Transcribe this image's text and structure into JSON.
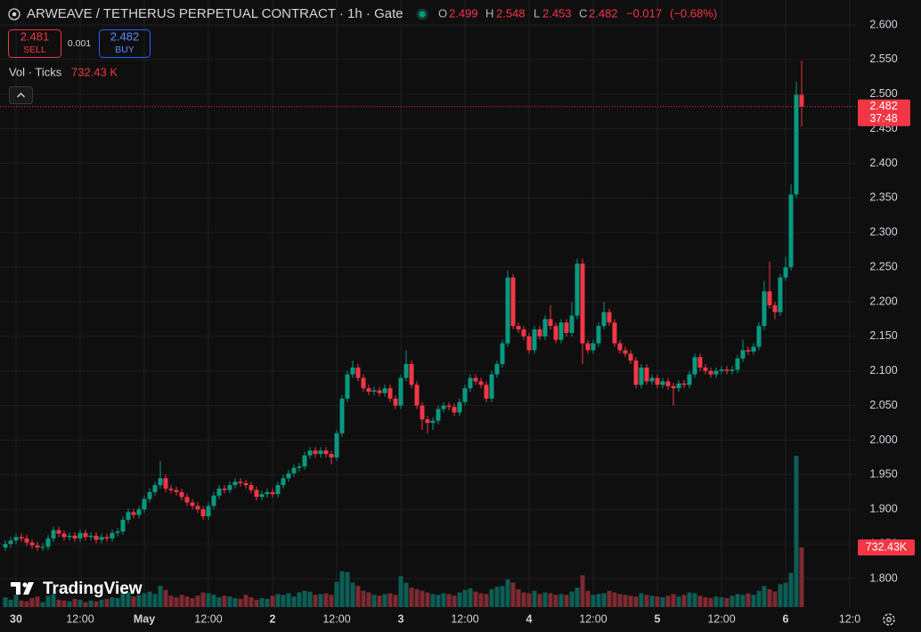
{
  "chart_data": {
    "type": "candlestick",
    "title": "ARWEAVE / TETHERUS PERPETUAL CONTRACT · 1h · Gate",
    "ohlc_legend_labels": [
      "O",
      "H",
      "L",
      "C"
    ],
    "change": {
      "value": -0.017,
      "label": "−0.017"
    },
    "change_pct": {
      "value": -0.68,
      "label": "(−0.68%)"
    },
    "sell_price": 2.481,
    "sell_label": "SELL",
    "spread": 0.001,
    "buy_price": 2.482,
    "buy_label": "BUY",
    "volume_title": "Vol · Ticks",
    "volume_last_label": "732.43 K",
    "volume_tag_label": "732.43K",
    "countdown": "37:48",
    "brand": "TradingView",
    "up_color": "#089981",
    "down_color": "#f23645",
    "up_volume_color": "#0b5e56",
    "down_volume_color": "#7d2a30",
    "grid": true,
    "ylim": [
      1.77,
      2.6
    ],
    "yticks": [
      {
        "value": 1.8,
        "label": "1.800"
      },
      {
        "value": 1.85,
        "label": "1.850"
      },
      {
        "value": 1.9,
        "label": "1.900"
      },
      {
        "value": 1.95,
        "label": "1.950"
      },
      {
        "value": 2.0,
        "label": "2.000"
      },
      {
        "value": 2.05,
        "label": "2.050"
      },
      {
        "value": 2.1,
        "label": "2.100"
      },
      {
        "value": 2.15,
        "label": "2.150"
      },
      {
        "value": 2.2,
        "label": "2.200"
      },
      {
        "value": 2.25,
        "label": "2.250"
      },
      {
        "value": 2.3,
        "label": "2.300"
      },
      {
        "value": 2.35,
        "label": "2.350"
      },
      {
        "value": 2.4,
        "label": "2.400"
      },
      {
        "value": 2.45,
        "label": "2.450"
      },
      {
        "value": 2.5,
        "label": "2.500"
      },
      {
        "value": 2.55,
        "label": "2.550"
      },
      {
        "value": 2.6,
        "label": "2.600"
      }
    ],
    "categories": [
      null,
      null,
      "30",
      null,
      null,
      null,
      null,
      null,
      null,
      null,
      null,
      null,
      null,
      null,
      "12:00",
      null,
      null,
      null,
      null,
      null,
      null,
      null,
      null,
      null,
      null,
      null,
      "May",
      null,
      null,
      null,
      null,
      null,
      null,
      null,
      null,
      null,
      null,
      null,
      "12:00",
      null,
      null,
      null,
      null,
      null,
      null,
      null,
      null,
      null,
      null,
      null,
      "2",
      null,
      null,
      null,
      null,
      null,
      null,
      null,
      null,
      null,
      null,
      null,
      "12:00",
      null,
      null,
      null,
      null,
      null,
      null,
      null,
      null,
      null,
      null,
      null,
      "3",
      null,
      null,
      null,
      null,
      null,
      null,
      null,
      null,
      null,
      null,
      null,
      "12:00",
      null,
      null,
      null,
      null,
      null,
      null,
      null,
      null,
      null,
      null,
      null,
      "4",
      null,
      null,
      null,
      null,
      null,
      null,
      null,
      null,
      null,
      null,
      null,
      "12:00",
      null,
      null,
      null,
      null,
      null,
      null,
      null,
      null,
      null,
      null,
      null,
      "5",
      null,
      null,
      null,
      null,
      null,
      null,
      null,
      null,
      null,
      null,
      null,
      "12:00",
      null,
      null,
      null,
      null,
      null,
      null,
      null,
      null,
      null,
      null,
      null,
      "6",
      null,
      null,
      null,
      null,
      null,
      null,
      null,
      null,
      null,
      null,
      null,
      "12:0",
      null
    ],
    "ohlc": [
      [
        1.845,
        1.855,
        1.84,
        1.85
      ],
      [
        1.85,
        1.86,
        1.845,
        1.855
      ],
      [
        1.855,
        1.865,
        1.85,
        1.86
      ],
      [
        1.86,
        1.865,
        1.853,
        1.858
      ],
      [
        1.858,
        1.863,
        1.847,
        1.852
      ],
      [
        1.852,
        1.857,
        1.843,
        1.848
      ],
      [
        1.848,
        1.853,
        1.84,
        1.845
      ],
      [
        1.845,
        1.851,
        1.84,
        1.846
      ],
      [
        1.846,
        1.863,
        1.841,
        1.858
      ],
      [
        1.858,
        1.875,
        1.853,
        1.87
      ],
      [
        1.87,
        1.875,
        1.86,
        1.865
      ],
      [
        1.865,
        1.87,
        1.855,
        1.86
      ],
      [
        1.86,
        1.867,
        1.855,
        1.862
      ],
      [
        1.862,
        1.867,
        1.853,
        1.858
      ],
      [
        1.858,
        1.871,
        1.853,
        1.866
      ],
      [
        1.866,
        1.871,
        1.855,
        1.86
      ],
      [
        1.86,
        1.867,
        1.855,
        1.862
      ],
      [
        1.862,
        1.867,
        1.851,
        1.856
      ],
      [
        1.856,
        1.865,
        1.851,
        1.86
      ],
      [
        1.86,
        1.865,
        1.853,
        1.858
      ],
      [
        1.858,
        1.871,
        1.853,
        1.866
      ],
      [
        1.866,
        1.873,
        1.861,
        1.868
      ],
      [
        1.868,
        1.89,
        1.863,
        1.885
      ],
      [
        1.885,
        1.901,
        1.88,
        1.896
      ],
      [
        1.896,
        1.901,
        1.887,
        1.892
      ],
      [
        1.892,
        1.905,
        1.887,
        1.9
      ],
      [
        1.9,
        1.92,
        1.895,
        1.915
      ],
      [
        1.915,
        1.93,
        1.91,
        1.925
      ],
      [
        1.925,
        1.94,
        1.92,
        1.935
      ],
      [
        1.935,
        1.97,
        1.93,
        1.945
      ],
      [
        1.945,
        1.95,
        1.925,
        1.93
      ],
      [
        1.93,
        1.935,
        1.923,
        1.928
      ],
      [
        1.928,
        1.933,
        1.92,
        1.925
      ],
      [
        1.925,
        1.93,
        1.913,
        1.918
      ],
      [
        1.918,
        1.923,
        1.905,
        1.91
      ],
      [
        1.91,
        1.915,
        1.9,
        1.905
      ],
      [
        1.905,
        1.91,
        1.895,
        1.9
      ],
      [
        1.9,
        1.905,
        1.885,
        1.89
      ],
      [
        1.89,
        1.91,
        1.885,
        1.905
      ],
      [
        1.905,
        1.925,
        1.9,
        1.92
      ],
      [
        1.92,
        1.935,
        1.915,
        1.93
      ],
      [
        1.93,
        1.935,
        1.923,
        1.928
      ],
      [
        1.928,
        1.94,
        1.923,
        1.935
      ],
      [
        1.935,
        1.945,
        1.93,
        1.94
      ],
      [
        1.94,
        1.945,
        1.933,
        1.938
      ],
      [
        1.938,
        1.943,
        1.93,
        1.935
      ],
      [
        1.935,
        1.94,
        1.923,
        1.928
      ],
      [
        1.928,
        1.933,
        1.913,
        1.918
      ],
      [
        1.918,
        1.927,
        1.913,
        1.922
      ],
      [
        1.922,
        1.93,
        1.917,
        1.925
      ],
      [
        1.925,
        1.93,
        1.917,
        1.922
      ],
      [
        1.922,
        1.94,
        1.917,
        1.935
      ],
      [
        1.935,
        1.95,
        1.93,
        1.945
      ],
      [
        1.945,
        1.957,
        1.94,
        1.952
      ],
      [
        1.952,
        1.965,
        1.947,
        1.96
      ],
      [
        1.96,
        1.967,
        1.955,
        1.962
      ],
      [
        1.962,
        1.983,
        1.957,
        1.978
      ],
      [
        1.978,
        1.99,
        1.973,
        1.985
      ],
      [
        1.985,
        1.99,
        1.975,
        1.98
      ],
      [
        1.98,
        1.99,
        1.975,
        1.985
      ],
      [
        1.985,
        1.99,
        1.975,
        1.98
      ],
      [
        1.98,
        1.985,
        1.965,
        1.975
      ],
      [
        1.975,
        2.015,
        1.97,
        2.01
      ],
      [
        2.01,
        2.065,
        2.005,
        2.06
      ],
      [
        2.06,
        2.1,
        2.055,
        2.095
      ],
      [
        2.095,
        2.115,
        2.09,
        2.105
      ],
      [
        2.105,
        2.11,
        2.085,
        2.09
      ],
      [
        2.09,
        2.095,
        2.07,
        2.075
      ],
      [
        2.075,
        2.08,
        2.065,
        2.07
      ],
      [
        2.07,
        2.077,
        2.065,
        2.072
      ],
      [
        2.072,
        2.077,
        2.063,
        2.068
      ],
      [
        2.068,
        2.08,
        2.063,
        2.075
      ],
      [
        2.075,
        2.08,
        2.055,
        2.06
      ],
      [
        2.06,
        2.065,
        2.045,
        2.05
      ],
      [
        2.05,
        2.095,
        2.045,
        2.09
      ],
      [
        2.09,
        2.13,
        2.085,
        2.11
      ],
      [
        2.11,
        2.115,
        2.075,
        2.08
      ],
      [
        2.08,
        2.085,
        2.045,
        2.05
      ],
      [
        2.05,
        2.055,
        2.015,
        2.03
      ],
      [
        2.03,
        2.035,
        2.01,
        2.025
      ],
      [
        2.025,
        2.033,
        2.015,
        2.028
      ],
      [
        2.028,
        2.05,
        2.023,
        2.045
      ],
      [
        2.045,
        2.055,
        2.04,
        2.05
      ],
      [
        2.05,
        2.055,
        2.043,
        2.048
      ],
      [
        2.048,
        2.053,
        2.035,
        2.04
      ],
      [
        2.04,
        2.06,
        2.035,
        2.055
      ],
      [
        2.055,
        2.08,
        2.05,
        2.075
      ],
      [
        2.075,
        2.095,
        2.07,
        2.09
      ],
      [
        2.09,
        2.095,
        2.08,
        2.085
      ],
      [
        2.085,
        2.09,
        2.075,
        2.08
      ],
      [
        2.08,
        2.085,
        2.055,
        2.06
      ],
      [
        2.06,
        2.1,
        2.055,
        2.095
      ],
      [
        2.095,
        2.115,
        2.09,
        2.11
      ],
      [
        2.11,
        2.145,
        2.105,
        2.14
      ],
      [
        2.14,
        2.245,
        2.135,
        2.235
      ],
      [
        2.235,
        2.24,
        2.16,
        2.165
      ],
      [
        2.165,
        2.17,
        2.155,
        2.16
      ],
      [
        2.16,
        2.165,
        2.145,
        2.15
      ],
      [
        2.15,
        2.155,
        2.125,
        2.13
      ],
      [
        2.13,
        2.165,
        2.125,
        2.16
      ],
      [
        2.16,
        2.165,
        2.145,
        2.15
      ],
      [
        2.15,
        2.18,
        2.145,
        2.175
      ],
      [
        2.175,
        2.195,
        2.16,
        2.165
      ],
      [
        2.165,
        2.17,
        2.14,
        2.145
      ],
      [
        2.145,
        2.175,
        2.14,
        2.17
      ],
      [
        2.17,
        2.175,
        2.15,
        2.155
      ],
      [
        2.155,
        2.2,
        2.15,
        2.18
      ],
      [
        2.18,
        2.262,
        2.175,
        2.255
      ],
      [
        2.255,
        2.262,
        2.11,
        2.14
      ],
      [
        2.14,
        2.145,
        2.125,
        2.13
      ],
      [
        2.13,
        2.145,
        2.125,
        2.14
      ],
      [
        2.14,
        2.17,
        2.135,
        2.165
      ],
      [
        2.165,
        2.2,
        2.16,
        2.185
      ],
      [
        2.185,
        2.19,
        2.165,
        2.17
      ],
      [
        2.17,
        2.175,
        2.135,
        2.14
      ],
      [
        2.14,
        2.145,
        2.125,
        2.13
      ],
      [
        2.13,
        2.135,
        2.12,
        2.125
      ],
      [
        2.125,
        2.13,
        2.11,
        2.115
      ],
      [
        2.115,
        2.12,
        2.075,
        2.08
      ],
      [
        2.08,
        2.11,
        2.075,
        2.105
      ],
      [
        2.105,
        2.11,
        2.08,
        2.085
      ],
      [
        2.085,
        2.095,
        2.08,
        2.09
      ],
      [
        2.09,
        2.095,
        2.075,
        2.08
      ],
      [
        2.08,
        2.09,
        2.075,
        2.085
      ],
      [
        2.085,
        2.09,
        2.073,
        2.078
      ],
      [
        2.078,
        2.083,
        2.05,
        2.075
      ],
      [
        2.075,
        2.087,
        2.07,
        2.082
      ],
      [
        2.082,
        2.087,
        2.075,
        2.08
      ],
      [
        2.08,
        2.1,
        2.075,
        2.095
      ],
      [
        2.095,
        2.125,
        2.09,
        2.12
      ],
      [
        2.12,
        2.125,
        2.1,
        2.105
      ],
      [
        2.105,
        2.11,
        2.095,
        2.1
      ],
      [
        2.1,
        2.105,
        2.09,
        2.095
      ],
      [
        2.095,
        2.105,
        2.09,
        2.1
      ],
      [
        2.1,
        2.107,
        2.095,
        2.102
      ],
      [
        2.102,
        2.107,
        2.095,
        2.1
      ],
      [
        2.1,
        2.107,
        2.095,
        2.102
      ],
      [
        2.102,
        2.123,
        2.097,
        2.118
      ],
      [
        2.118,
        2.145,
        2.113,
        2.13
      ],
      [
        2.13,
        2.135,
        2.123,
        2.128
      ],
      [
        2.128,
        2.14,
        2.123,
        2.135
      ],
      [
        2.135,
        2.17,
        2.13,
        2.165
      ],
      [
        2.165,
        2.23,
        2.16,
        2.215
      ],
      [
        2.215,
        2.258,
        2.19,
        2.195
      ],
      [
        2.195,
        2.2,
        2.175,
        2.185
      ],
      [
        2.185,
        2.24,
        2.18,
        2.235
      ],
      [
        2.235,
        2.265,
        2.23,
        2.25
      ],
      [
        2.25,
        2.37,
        2.245,
        2.355
      ],
      [
        2.355,
        2.518,
        2.35,
        2.499
      ],
      [
        2.499,
        2.548,
        2.453,
        2.482
      ],
      null,
      null,
      null,
      null,
      null,
      null,
      null,
      null,
      null,
      null
    ],
    "volume": [
      120,
      90,
      150,
      80,
      70,
      110,
      130,
      60,
      140,
      160,
      90,
      80,
      70,
      100,
      90,
      60,
      80,
      70,
      90,
      100,
      120,
      110,
      200,
      180,
      130,
      150,
      170,
      190,
      160,
      260,
      210,
      140,
      120,
      150,
      130,
      110,
      140,
      180,
      170,
      150,
      120,
      140,
      130,
      110,
      100,
      150,
      120,
      90,
      110,
      100,
      140,
      160,
      150,
      170,
      130,
      180,
      200,
      190,
      150,
      160,
      170,
      150,
      310,
      440,
      430,
      300,
      260,
      200,
      180,
      150,
      140,
      160,
      170,
      150,
      380,
      300,
      240,
      220,
      200,
      180,
      160,
      150,
      170,
      160,
      140,
      180,
      210,
      230,
      190,
      170,
      160,
      220,
      250,
      260,
      340,
      300,
      220,
      180,
      170,
      200,
      160,
      180,
      170,
      150,
      160,
      150,
      190,
      240,
      390,
      200,
      150,
      160,
      170,
      200,
      180,
      160,
      150,
      140,
      130,
      170,
      150,
      140,
      130,
      120,
      140,
      160,
      130,
      150,
      180,
      170,
      140,
      120,
      110,
      130,
      120,
      110,
      140,
      160,
      150,
      170,
      150,
      200,
      260,
      220,
      190,
      280,
      300,
      420,
      1858,
      732.43,
      null,
      null,
      null,
      null,
      null,
      null,
      null,
      null,
      null,
      null
    ]
  }
}
